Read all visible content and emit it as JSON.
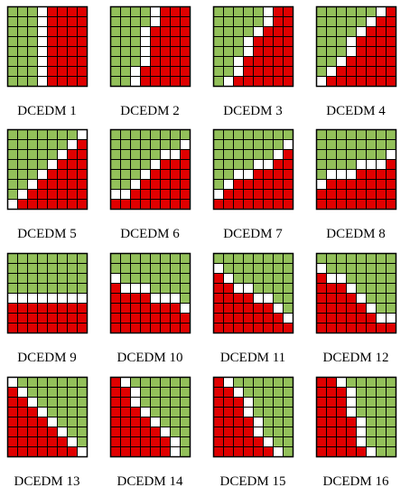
{
  "panels": [
    {
      "label": "DCEDM 1"
    },
    {
      "label": "DCEDM 2"
    },
    {
      "label": "DCEDM 3"
    },
    {
      "label": "DCEDM 4"
    },
    {
      "label": "DCEDM 5"
    },
    {
      "label": "DCEDM 6"
    },
    {
      "label": "DCEDM 7"
    },
    {
      "label": "DCEDM 8"
    },
    {
      "label": "DCEDM 9"
    },
    {
      "label": "DCEDM 10"
    },
    {
      "label": "DCEDM 11"
    },
    {
      "label": "DCEDM 12"
    },
    {
      "label": "DCEDM 13"
    },
    {
      "label": "DCEDM 14"
    },
    {
      "label": "DCEDM 15"
    },
    {
      "label": "DCEDM 16"
    }
  ]
}
